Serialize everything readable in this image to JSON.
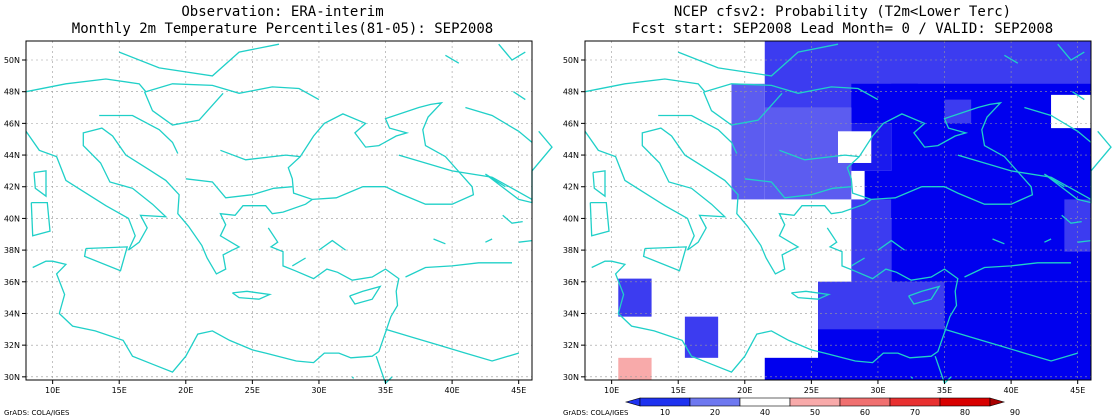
{
  "left_panel": {
    "title_line1": "Observation: ERA-interim",
    "title_line2": "Monthly 2m Temperature Percentiles(81-05): SEP2008"
  },
  "right_panel": {
    "title_line1": "NCEP cfsv2: Probability (T2m<Lower Terc)",
    "title_line2": "Fcst start: SEP2008  Lead Month= 0 / VALID: SEP2008"
  },
  "map": {
    "lon_labels": [
      "10E",
      "15E",
      "20E",
      "25E",
      "30E",
      "35E",
      "40E",
      "45E"
    ],
    "lat_labels": [
      "50N",
      "48N",
      "46N",
      "44N",
      "42N",
      "40N",
      "38N",
      "36N",
      "34N",
      "32N",
      "30N"
    ],
    "lon_values": [
      10,
      15,
      20,
      25,
      30,
      35,
      40,
      45
    ],
    "lat_values": [
      50,
      48,
      46,
      44,
      42,
      40,
      38,
      36,
      34,
      32,
      30
    ],
    "lon_range": [
      8,
      46
    ],
    "lat_range": [
      29.8,
      51.2
    ],
    "coast_color": "#20d0c8"
  },
  "colorbar": {
    "labels": [
      "10",
      "20",
      "40",
      "50",
      "60",
      "70",
      "80",
      "90"
    ],
    "colors": [
      "#1e32f0",
      "#6e78f0",
      "#ffffff",
      "#f8aaaa",
      "#f07070",
      "#e83030",
      "#d80000",
      "#a80000"
    ]
  },
  "cells": [
    {
      "lat": 51,
      "lon": 21.5,
      "level": "#3c3cf0"
    },
    {
      "lat": 51,
      "lon": 24,
      "level": "#3c3cf0"
    },
    {
      "lat": 51,
      "lon": 26.5,
      "level": "#3c3cf0"
    },
    {
      "lat": 51,
      "lon": 29,
      "level": "#3c3cf0"
    },
    {
      "lat": 51,
      "lon": 31.5,
      "level": "#3c3cf0"
    },
    {
      "lat": 51,
      "lon": 34,
      "level": "#3c3cf0"
    },
    {
      "lat": 51,
      "lon": 36.5,
      "level": "#3c3cf0"
    },
    {
      "lat": 51,
      "lon": 39,
      "level": "#3c3cf0"
    },
    {
      "lat": 51,
      "lon": 41.5,
      "level": "#3c3cf0"
    },
    {
      "lat": 51,
      "lon": 44,
      "level": "#3c3cf0"
    }
  ],
  "credit_left": "GrADS: COLA/IGES",
  "credit_right": "GrADS: COLA/IGES"
}
